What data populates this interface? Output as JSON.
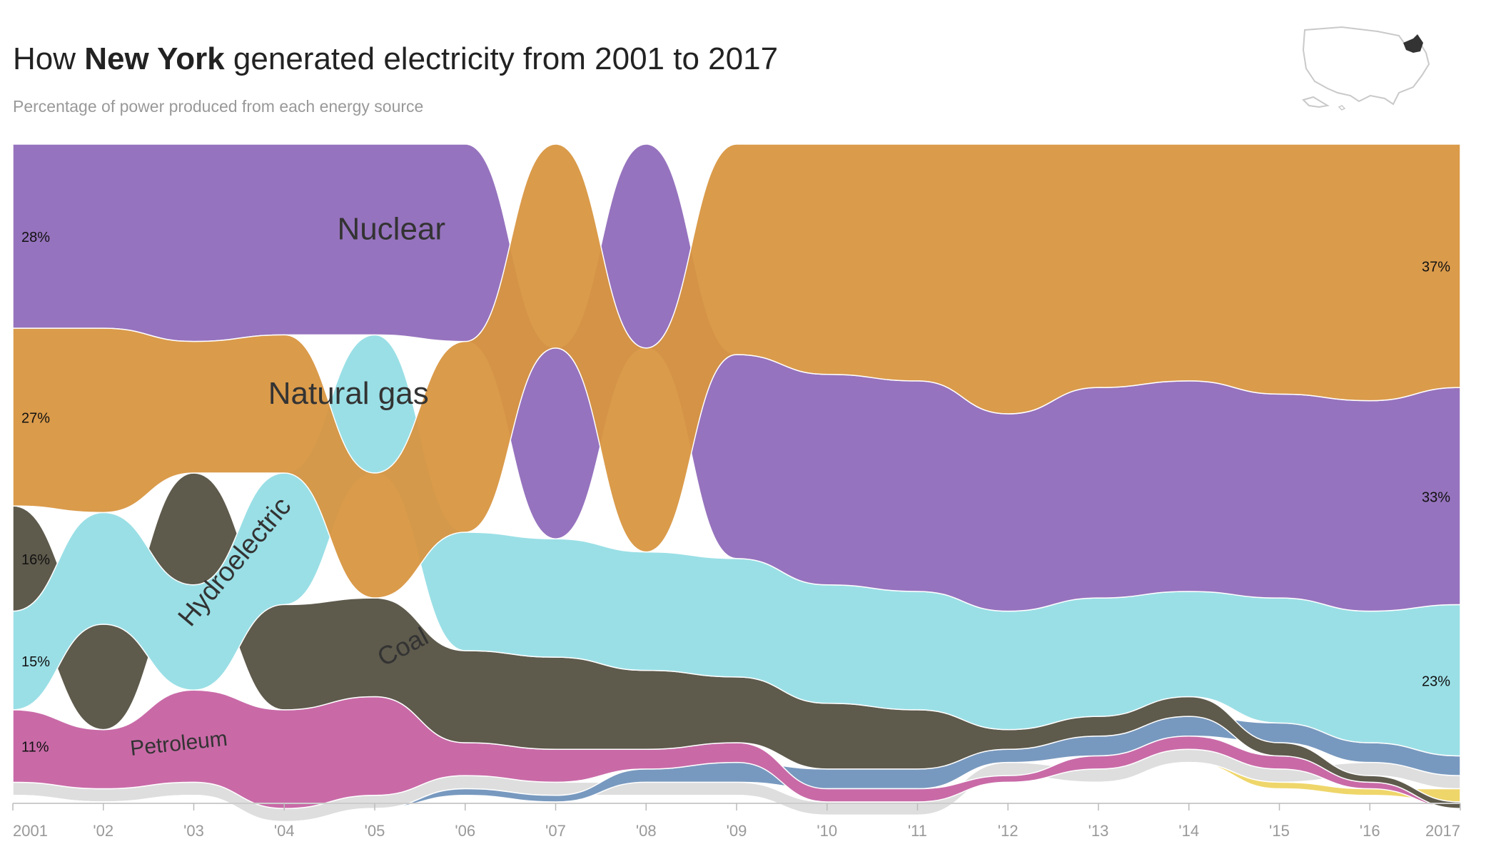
{
  "header": {
    "title_prefix": "How ",
    "title_state": "New York",
    "title_suffix": " generated electricity from 2001 to 2017",
    "subtitle": "Percentage of power produced from each energy source"
  },
  "map_icon": "us-map-new-york-highlighted",
  "chart_data": {
    "type": "area",
    "subtype": "ranked-bump-stream",
    "title": "How New York generated electricity from 2001 to 2017",
    "subtitle": "Percentage of power produced from each energy source",
    "x": [
      2001,
      2002,
      2003,
      2004,
      2005,
      2006,
      2007,
      2008,
      2009,
      2010,
      2011,
      2012,
      2013,
      2014,
      2015,
      2016,
      2017
    ],
    "x_tick_labels": [
      "2001",
      "'02",
      "'03",
      "'04",
      "'05",
      "'06",
      "'07",
      "'08",
      "'09",
      "'10",
      "'11",
      "'12",
      "'13",
      "'14",
      "'15",
      "'16",
      "2017"
    ],
    "ylim": [
      0,
      100
    ],
    "grid": false,
    "legend": "inline labels",
    "series": [
      {
        "name": "Nuclear",
        "color": "#9673be",
        "values": [
          28,
          28,
          30,
          29,
          29,
          30,
          29,
          31,
          31,
          32,
          32,
          30,
          32,
          32,
          31,
          32,
          33
        ]
      },
      {
        "name": "Natural gas",
        "color": "#d89540",
        "values": [
          27,
          28,
          20,
          21,
          19,
          29,
          31,
          31,
          32,
          35,
          36,
          41,
          37,
          36,
          38,
          39,
          37
        ]
      },
      {
        "name": "Hydroelectric",
        "color": "#9adfe6",
        "values": [
          15,
          17,
          16,
          20,
          21,
          18,
          18,
          18,
          18,
          18,
          18,
          18,
          18,
          16,
          19,
          20,
          23
        ]
      },
      {
        "name": "Coal",
        "color": "#5e5a4c",
        "values": [
          16,
          16,
          17,
          16,
          15,
          14,
          14,
          12,
          10,
          10,
          9,
          3,
          3,
          3,
          2,
          1,
          1
        ]
      },
      {
        "name": "Petroleum",
        "color": "#c96aa7",
        "values": [
          11,
          9,
          14,
          15,
          15,
          5,
          5,
          3,
          3,
          2,
          2,
          1,
          2,
          2,
          2,
          1,
          0
        ]
      },
      {
        "name": "",
        "color": "#7899bf",
        "values": [
          0,
          0,
          0,
          0,
          0,
          1,
          1,
          2,
          3,
          3,
          3,
          2,
          3,
          3,
          3,
          3,
          3
        ]
      },
      {
        "name": "",
        "color": "#dedede",
        "values": [
          2,
          2,
          2,
          2,
          2,
          2,
          2,
          2,
          2,
          2,
          2,
          2,
          2,
          2,
          2,
          2,
          2
        ]
      },
      {
        "name": "",
        "color": "#efd66a",
        "values": [
          0,
          0,
          0,
          0,
          0,
          0,
          0,
          0,
          0,
          0,
          0,
          0,
          0,
          0,
          1,
          1,
          2
        ]
      }
    ],
    "annotations": {
      "start": [
        "28%",
        "27%",
        "16%",
        "15%",
        "11%"
      ],
      "end": [
        "37%",
        "33%",
        "23%"
      ]
    }
  }
}
